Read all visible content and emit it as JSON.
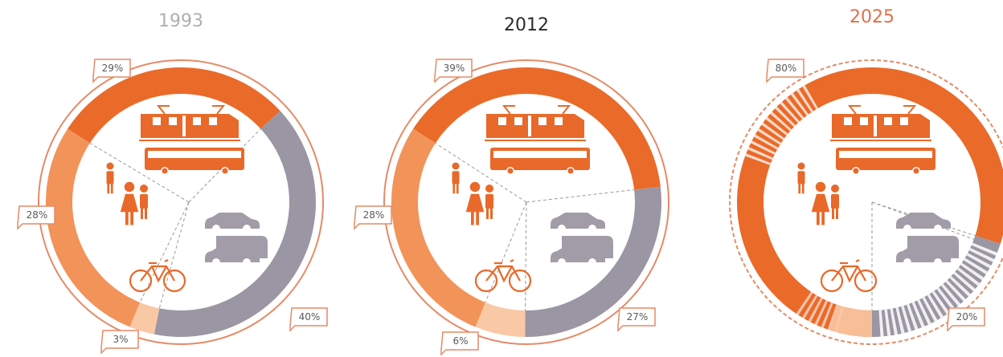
{
  "chart_data": [
    {
      "type": "pie",
      "title": "1993",
      "title_color": "#b0b0b0",
      "slices": [
        {
          "category": "public-transport",
          "value": 29,
          "label": "29%"
        },
        {
          "category": "car",
          "value": 40,
          "label": "40%"
        },
        {
          "category": "bicycle",
          "value": 3,
          "label": "3%"
        },
        {
          "category": "walking",
          "value": 28,
          "label": "28%"
        }
      ]
    },
    {
      "type": "pie",
      "title": "2012",
      "title_color": "#2b2b2b",
      "slices": [
        {
          "category": "public-transport",
          "value": 39,
          "label": "39%"
        },
        {
          "category": "car",
          "value": 27,
          "label": "27%"
        },
        {
          "category": "bicycle",
          "value": 6,
          "label": "6%"
        },
        {
          "category": "walking",
          "value": 28,
          "label": "28%"
        }
      ]
    },
    {
      "type": "pie",
      "title": "2025",
      "title_color": "#e0704a",
      "slices": [
        {
          "category": "sustainable-modes",
          "value": 80,
          "label": "80%"
        },
        {
          "category": "car",
          "value": 20,
          "label": "20%"
        }
      ]
    }
  ],
  "colors": {
    "public-transport": "#ea6a2a",
    "walking": "#f2935a",
    "bicycle": "#f9c8a4",
    "car": "#9b96a3",
    "outline": "#e58a66",
    "icon": "#e8692a",
    "icon_car": "#a19ca8"
  },
  "icons": [
    "tram-icon",
    "bus-icon",
    "pedestrians-icon",
    "bicycle-icon",
    "car-icon",
    "van-icon"
  ]
}
